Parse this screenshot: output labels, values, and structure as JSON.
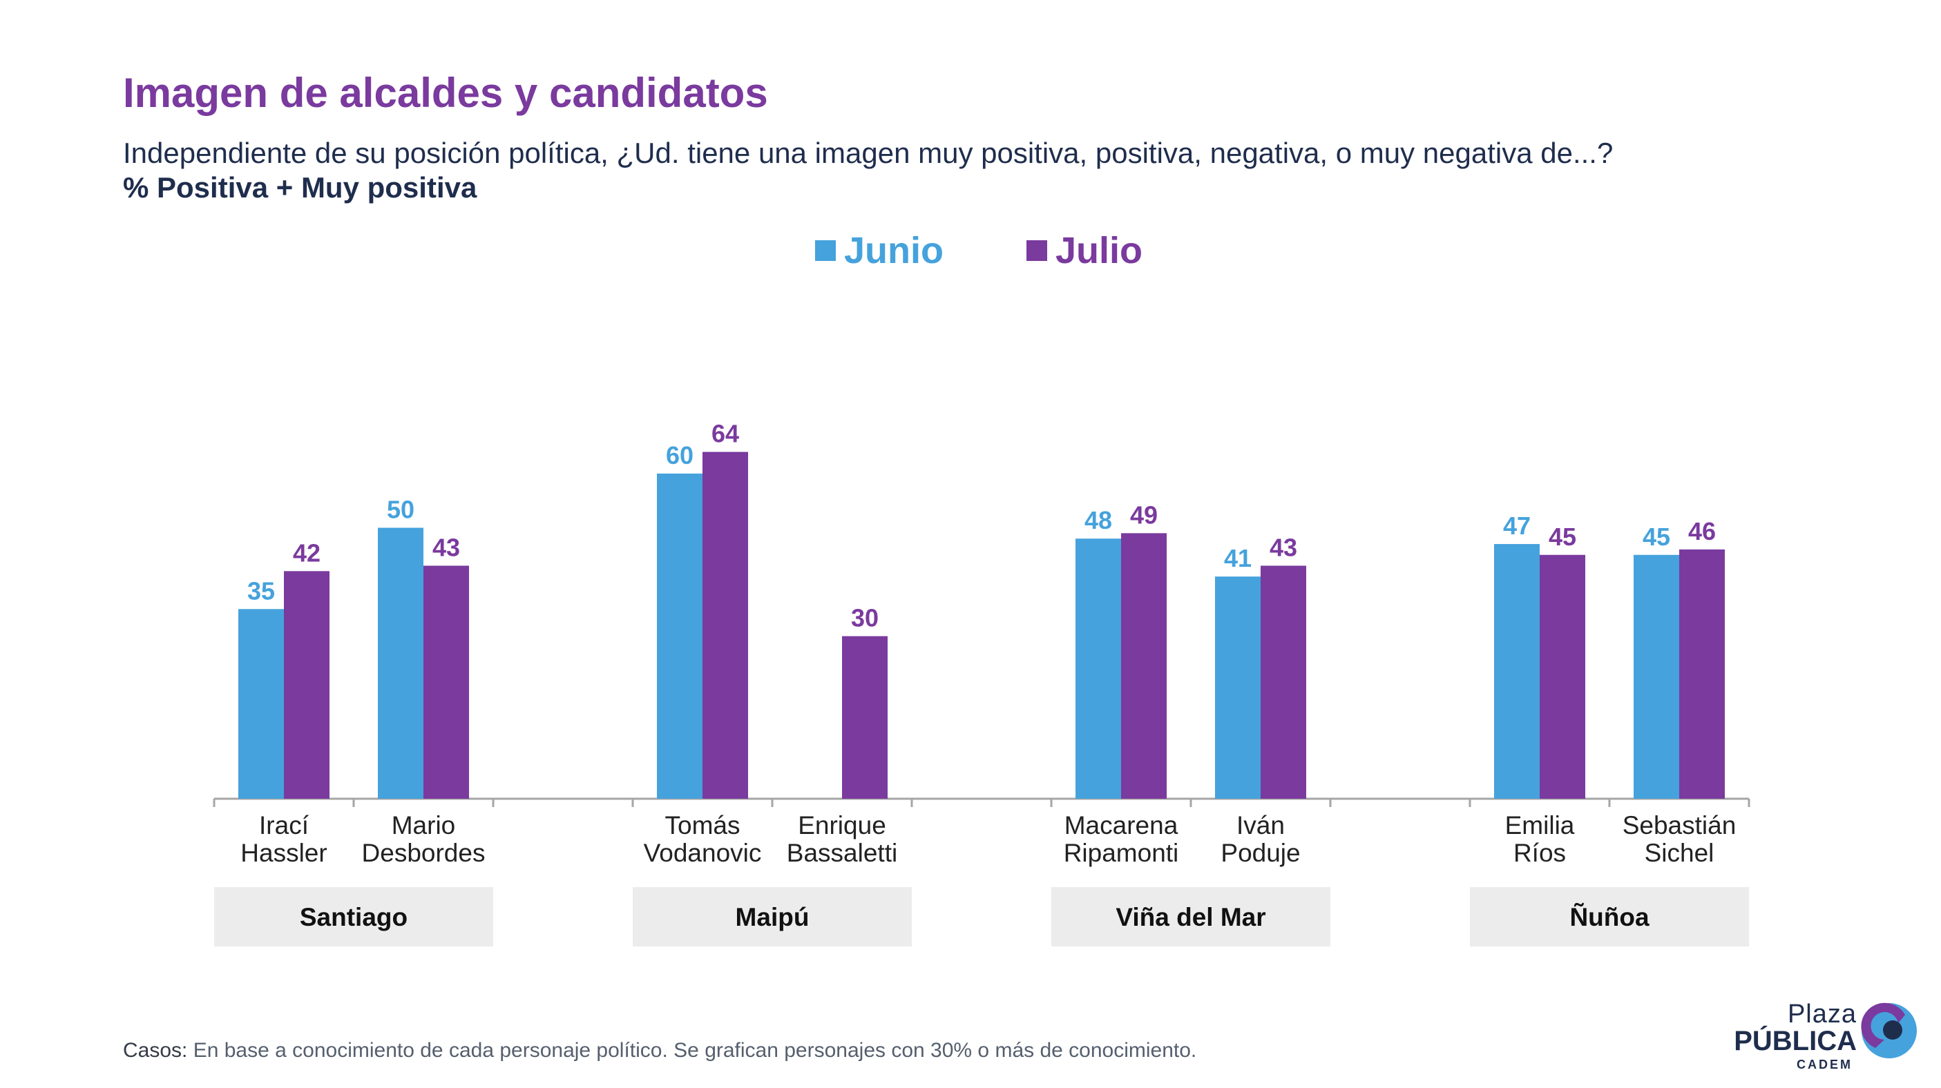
{
  "header": {
    "title": "Imagen de alcaldes y candidatos",
    "subtitle": "Independiente de su posición política, ¿Ud. tiene una imagen muy positiva, positiva, negativa, o muy negativa de...?",
    "metric": "% Positiva + Muy positiva"
  },
  "colors": {
    "title": "#7a3a9e",
    "junio": "#45a2dc",
    "julio": "#7a3a9e",
    "group_box": "#ececec"
  },
  "chart_data": {
    "type": "bar",
    "series": [
      {
        "name": "Junio",
        "values": [
          35,
          50,
          60,
          null,
          48,
          41,
          47,
          45
        ]
      },
      {
        "name": "Julio",
        "values": [
          42,
          43,
          64,
          30,
          49,
          43,
          45,
          46
        ]
      }
    ],
    "categories": [
      [
        "Irací",
        "Hassler"
      ],
      [
        "Mario",
        "Desbordes"
      ],
      [
        "Tomás",
        "Vodanovic"
      ],
      [
        "Enrique",
        "Bassaletti"
      ],
      [
        "Macarena",
        "Ripamonti"
      ],
      [
        "Iván",
        "Poduje"
      ],
      [
        "Emilia",
        "Ríos"
      ],
      [
        "Sebastián",
        "Sichel"
      ]
    ],
    "groups": [
      {
        "name": "Santiago",
        "categories": [
          0,
          1
        ]
      },
      {
        "name": "Maipú",
        "categories": [
          2,
          3
        ]
      },
      {
        "name": "Viña del Mar",
        "categories": [
          4,
          5
        ]
      },
      {
        "name": "Ñuñoa",
        "categories": [
          6,
          7
        ]
      }
    ],
    "legend": "top-center",
    "grid": false,
    "ylim": [
      0,
      70
    ]
  },
  "footer": {
    "label": "Casos:",
    "text": " En base a conocimiento de cada personaje político. Se grafican personajes con 30% o más de conocimiento."
  },
  "logo": {
    "line1": "Plaza",
    "line2": "PÚBLICA",
    "line3": "CADEM"
  }
}
